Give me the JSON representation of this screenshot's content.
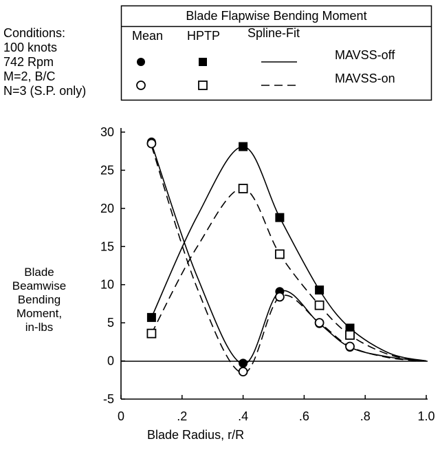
{
  "conditions": {
    "lines": [
      "Conditions:",
      "100 knots",
      "742 Rpm",
      "M=2, B/C",
      "N=3 (S.P. only)"
    ]
  },
  "legend": {
    "title": "Blade Flapwise Bending Moment",
    "headers": [
      "Mean",
      "HPTP",
      "Spline-Fit"
    ],
    "rows": [
      "MAVSS-off",
      "MAVSS-on"
    ]
  },
  "chart_data": {
    "type": "scatter",
    "title": "Blade Flapwise Bending Moment",
    "xlabel": "Blade Radius, r/R",
    "ylabel": [
      "Blade",
      "Beamwise",
      "Bending",
      "Moment,",
      "in-lbs"
    ],
    "xlim": [
      0,
      1.0
    ],
    "ylim": [
      -5,
      30
    ],
    "x_ticks": [
      "0",
      ".2",
      ".4",
      ".6",
      ".8",
      "1.0"
    ],
    "y_ticks": [
      "-5",
      "0",
      "5",
      "10",
      "15",
      "20",
      "25",
      "30"
    ],
    "grid": false,
    "legend_position": "top",
    "series": [
      {
        "name": "Mean MAVSS-off",
        "marker": "filled-circle",
        "x": [
          0.1,
          0.4,
          0.52,
          0.65,
          0.75
        ],
        "y": [
          28.7,
          -0.3,
          9.1,
          4.9,
          1.8
        ]
      },
      {
        "name": "HPTP MAVSS-off",
        "marker": "filled-square",
        "x": [
          0.1,
          0.4,
          0.52,
          0.65,
          0.75
        ],
        "y": [
          5.7,
          28.1,
          18.8,
          9.3,
          4.3
        ]
      },
      {
        "name": "Mean MAVSS-on",
        "marker": "open-circle",
        "x": [
          0.1,
          0.4,
          0.52,
          0.65,
          0.75
        ],
        "y": [
          28.5,
          -1.4,
          8.4,
          5.0,
          1.9
        ]
      },
      {
        "name": "HPTP MAVSS-on",
        "marker": "open-square",
        "x": [
          0.1,
          0.4,
          0.52,
          0.65,
          0.75
        ],
        "y": [
          3.6,
          22.6,
          14.0,
          7.3,
          3.4
        ]
      }
    ],
    "spline_fits": [
      {
        "name": "Mean MAVSS-off",
        "style": "solid",
        "x": [
          0.1,
          0.25,
          0.4,
          0.52,
          0.65,
          0.75,
          0.88,
          1.0
        ],
        "y": [
          28.5,
          11.0,
          -0.4,
          9.1,
          4.9,
          1.8,
          0.5,
          0.0
        ]
      },
      {
        "name": "HPTP MAVSS-off",
        "style": "solid",
        "x": [
          0.1,
          0.25,
          0.4,
          0.52,
          0.65,
          0.75,
          0.88,
          1.0
        ],
        "y": [
          5.7,
          19.0,
          28.1,
          18.8,
          9.3,
          4.3,
          1.0,
          0.0
        ]
      },
      {
        "name": "Mean MAVSS-on",
        "style": "dashed",
        "x": [
          0.1,
          0.25,
          0.4,
          0.52,
          0.65,
          0.75,
          0.88,
          1.0
        ],
        "y": [
          28.2,
          9.5,
          -1.6,
          8.4,
          5.0,
          1.9,
          0.4,
          0.0
        ]
      },
      {
        "name": "HPTP MAVSS-on",
        "style": "dashed",
        "x": [
          0.1,
          0.25,
          0.4,
          0.52,
          0.65,
          0.75,
          0.88,
          1.0
        ],
        "y": [
          3.6,
          15.0,
          22.6,
          14.0,
          7.3,
          3.4,
          0.8,
          0.0
        ]
      }
    ]
  }
}
